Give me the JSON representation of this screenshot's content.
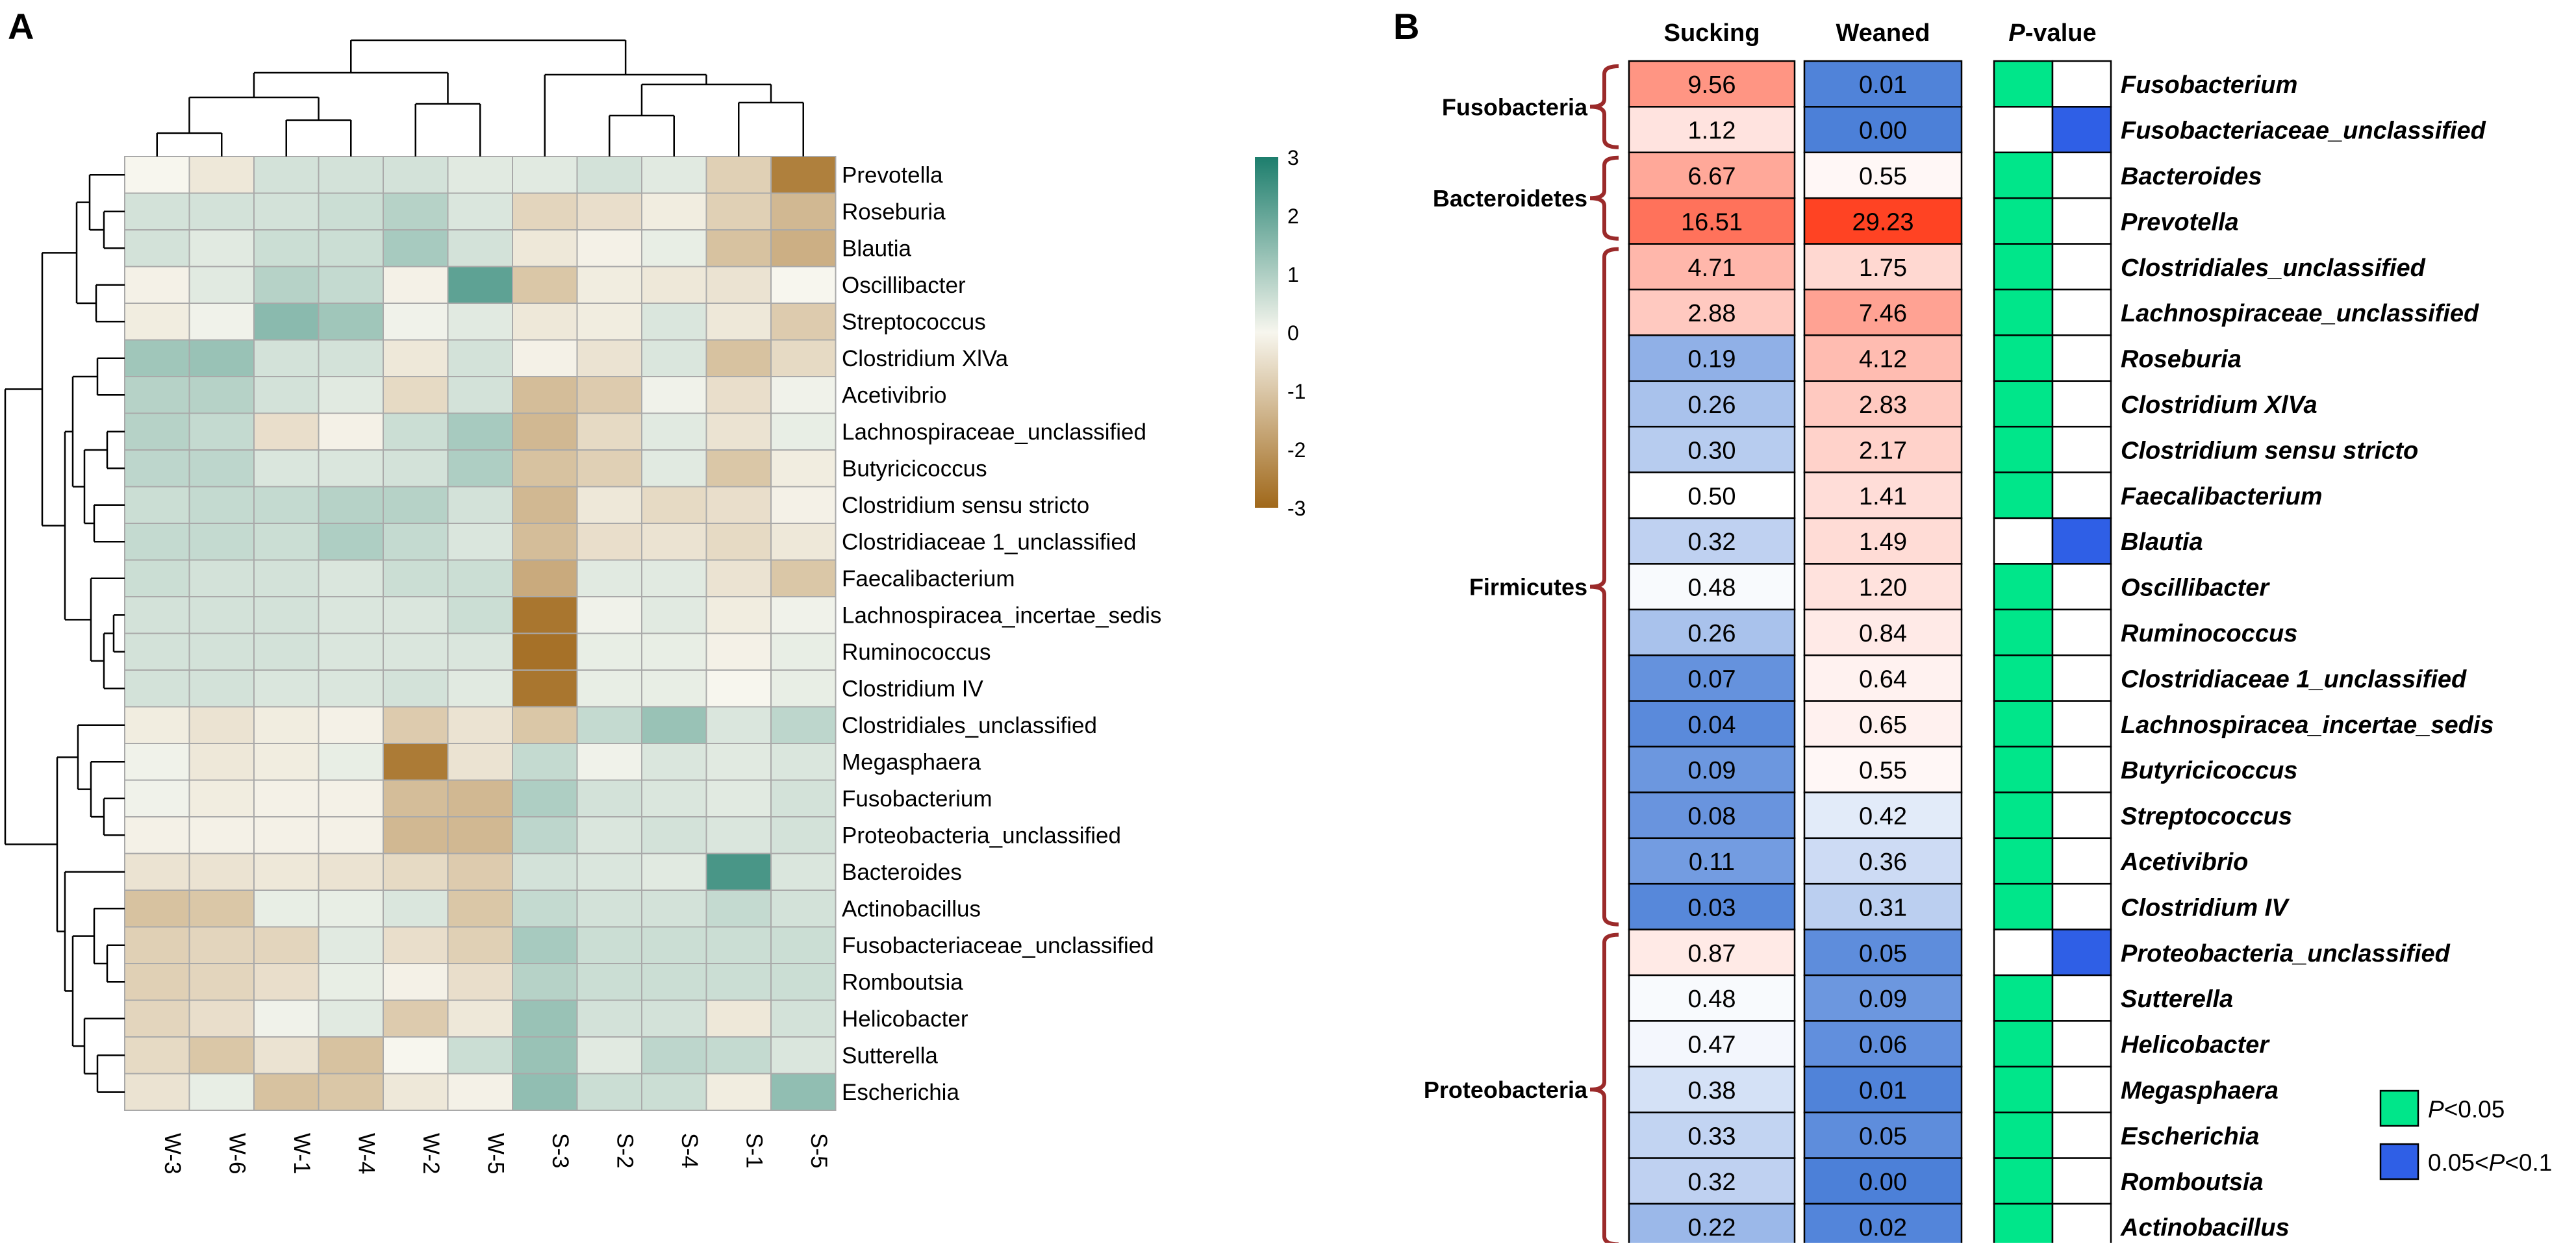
{
  "panel_a_label": "A",
  "panel_b_label": "B",
  "chart_data": [
    {
      "type": "heatmap",
      "title": "",
      "columns": [
        "W-3",
        "W-6",
        "W-1",
        "W-4",
        "W-2",
        "W-5",
        "S-3",
        "S-2",
        "S-4",
        "S-1",
        "S-5"
      ],
      "rows": [
        "Prevotella",
        "Roseburia",
        "Blautia",
        "Oscillibacter",
        "Streptococcus",
        "Clostridium XlVa",
        "Acetivibrio",
        "Lachnospiraceae_unclassified",
        "Butyricicoccus",
        "Clostridium sensu stricto",
        "Clostridiaceae 1_unclassified",
        "Faecalibacterium",
        "Lachnospiracea_incertae_sedis",
        "Ruminococcus",
        "Clostridium IV",
        "Clostridiales_unclassified",
        "Megasphaera",
        "Fusobacterium",
        "Proteobacteria_unclassified",
        "Bacteroides",
        "Actinobacillus",
        "Fusobacteriaceae_unclassified",
        "Romboutsia",
        "Helicobacter",
        "Sutterella",
        "Escherichia"
      ],
      "values": [
        [
          0,
          -0.3,
          0.5,
          0.5,
          0.5,
          0.3,
          0.3,
          0.5,
          0.3,
          -0.8,
          -2.5
        ],
        [
          0.5,
          0.5,
          0.5,
          0.6,
          0.9,
          0.4,
          -0.7,
          -0.5,
          -0.2,
          -0.8,
          -1.3
        ],
        [
          0.5,
          0.3,
          0.6,
          0.6,
          1.1,
          0.5,
          -0.3,
          -0.1,
          0.2,
          -1.1,
          -1.5
        ],
        [
          -0.1,
          0.3,
          0.9,
          0.7,
          -0.1,
          2.1,
          -1.0,
          -0.2,
          -0.3,
          -0.4,
          0
        ],
        [
          -0.2,
          0.1,
          1.5,
          1.2,
          0.1,
          0.3,
          -0.3,
          -0.2,
          0.4,
          -0.3,
          -0.9
        ],
        [
          1.2,
          1.3,
          0.5,
          0.5,
          -0.3,
          0.5,
          -0.1,
          -0.4,
          0.4,
          -1.1,
          -0.6
        ],
        [
          0.9,
          0.9,
          0.5,
          0.3,
          -0.6,
          0.5,
          -1.2,
          -0.9,
          0.1,
          -0.5,
          0.1
        ],
        [
          0.9,
          0.7,
          -0.5,
          -0.1,
          0.6,
          1.1,
          -1.3,
          -0.6,
          0.3,
          -0.4,
          0.2
        ],
        [
          0.8,
          0.8,
          0.4,
          0.4,
          0.5,
          1.0,
          -1.1,
          -0.8,
          0.3,
          -1.0,
          -0.2
        ],
        [
          0.6,
          0.7,
          0.7,
          0.9,
          0.9,
          0.5,
          -1.3,
          -0.3,
          -0.6,
          -0.5,
          -0.1
        ],
        [
          0.7,
          0.7,
          0.6,
          1.0,
          0.7,
          0.4,
          -1.2,
          -0.5,
          -0.4,
          -0.6,
          -0.3
        ],
        [
          0.6,
          0.5,
          0.5,
          0.4,
          0.6,
          0.6,
          -1.6,
          0.3,
          0.3,
          -0.4,
          -1.0
        ],
        [
          0.5,
          0.5,
          0.5,
          0.4,
          0.4,
          0.6,
          -2.7,
          0.1,
          0.3,
          -0.2,
          0.1
        ],
        [
          0.5,
          0.5,
          0.5,
          0.4,
          0.4,
          0.4,
          -2.8,
          0.2,
          0.2,
          -0.1,
          0.2
        ],
        [
          0.5,
          0.5,
          0.4,
          0.4,
          0.5,
          0.3,
          -2.7,
          0.2,
          0.2,
          0,
          0.2
        ],
        [
          -0.2,
          -0.4,
          -0.2,
          -0.1,
          -0.9,
          -0.4,
          -1.0,
          0.7,
          1.3,
          0.4,
          0.8
        ],
        [
          0.1,
          -0.3,
          -0.2,
          0.2,
          -2.6,
          -0.4,
          0.7,
          0.1,
          0.4,
          0.3,
          0.4
        ],
        [
          0.1,
          -0.2,
          -0.1,
          -0.1,
          -1.2,
          -1.3,
          1.0,
          0.5,
          0.4,
          0.3,
          0.5
        ],
        [
          -0.1,
          -0.1,
          -0.1,
          -0.1,
          -1.3,
          -1.3,
          0.8,
          0.4,
          0.5,
          0.4,
          0.5
        ],
        [
          -0.4,
          -0.4,
          -0.3,
          -0.4,
          -0.6,
          -0.9,
          0.5,
          0.4,
          0.3,
          2.4,
          0.4
        ],
        [
          -1.1,
          -1.0,
          0.2,
          0.2,
          0.4,
          -1.0,
          0.7,
          0.5,
          0.5,
          0.7,
          0.5
        ],
        [
          -0.8,
          -0.7,
          -0.7,
          0.3,
          -0.5,
          -0.8,
          1.1,
          0.6,
          0.6,
          0.6,
          0.6
        ],
        [
          -0.8,
          -0.7,
          -0.5,
          0.2,
          -0.1,
          -0.5,
          0.9,
          0.6,
          0.6,
          0.6,
          0.6
        ],
        [
          -0.7,
          -0.5,
          0.1,
          0.3,
          -0.9,
          -0.3,
          1.3,
          0.5,
          0.5,
          -0.3,
          0.5
        ],
        [
          -0.6,
          -1.0,
          -0.4,
          -1.1,
          0,
          0.6,
          1.3,
          0.3,
          0.8,
          0.7,
          0.4
        ],
        [
          -0.4,
          0.2,
          -1.1,
          -1.0,
          -0.3,
          -0.1,
          1.4,
          0.6,
          0.6,
          -0.2,
          1.4
        ]
      ],
      "colorbar": {
        "min": -3,
        "max": 3,
        "ticks": [
          3,
          2,
          1,
          0,
          -1,
          -2,
          -3
        ],
        "colors": [
          "#a0681a",
          "#f7f6ee",
          "#1d7e6d"
        ]
      },
      "row_dendrogram": {
        "main_groups": [
          [
            "Prevotella",
            "Clostridium IV"
          ],
          [
            "Clostridiales_unclassified",
            "Escherichia"
          ]
        ]
      },
      "column_dendrogram": {
        "main_groups": [
          [
            "W-3",
            "W-6",
            "W-1",
            "W-4",
            "W-2",
            "W-5"
          ],
          [
            "S-3",
            "S-2",
            "S-4",
            "S-1",
            "S-5"
          ]
        ]
      }
    },
    {
      "type": "table",
      "columns": [
        "Sucking",
        "Weaned"
      ],
      "pvalue_header": {
        "italic": "P",
        "rest": "-value"
      },
      "rows": [
        {
          "genus": "Fusobacterium",
          "sucking": "9.56",
          "weaned": "0.01",
          "p": "lt005"
        },
        {
          "genus": "Fusobacteriaceae_unclassified",
          "sucking": "1.12",
          "weaned": "0.00",
          "p": "lt01"
        },
        {
          "genus": "Bacteroides",
          "sucking": "6.67",
          "weaned": "0.55",
          "p": "lt005"
        },
        {
          "genus": "Prevotella",
          "sucking": "16.51",
          "weaned": "29.23",
          "p": "lt005"
        },
        {
          "genus": "Clostridiales_unclassified",
          "sucking": "4.71",
          "weaned": "1.75",
          "p": "lt005"
        },
        {
          "genus": "Lachnospiraceae_unclassified",
          "sucking": "2.88",
          "weaned": "7.46",
          "p": "lt005"
        },
        {
          "genus": "Roseburia",
          "sucking": "0.19",
          "weaned": "4.12",
          "p": "lt005"
        },
        {
          "genus": "Clostridium XlVa",
          "sucking": "0.26",
          "weaned": "2.83",
          "p": "lt005"
        },
        {
          "genus": "Clostridium sensu stricto",
          "sucking": "0.30",
          "weaned": "2.17",
          "p": "lt005"
        },
        {
          "genus": "Faecalibacterium",
          "sucking": "0.50",
          "weaned": "1.41",
          "p": "lt005"
        },
        {
          "genus": "Blautia",
          "sucking": "0.32",
          "weaned": "1.49",
          "p": "lt01"
        },
        {
          "genus": "Oscillibacter",
          "sucking": "0.48",
          "weaned": "1.20",
          "p": "lt005"
        },
        {
          "genus": "Ruminococcus",
          "sucking": "0.26",
          "weaned": "0.84",
          "p": "lt005"
        },
        {
          "genus": "Clostridiaceae 1_unclassified",
          "sucking": "0.07",
          "weaned": "0.64",
          "p": "lt005"
        },
        {
          "genus": "Lachnospiracea_incertae_sedis",
          "sucking": "0.04",
          "weaned": "0.65",
          "p": "lt005"
        },
        {
          "genus": "Butyricicoccus",
          "sucking": "0.09",
          "weaned": "0.55",
          "p": "lt005"
        },
        {
          "genus": "Streptococcus",
          "sucking": "0.08",
          "weaned": "0.42",
          "p": "lt005"
        },
        {
          "genus": "Acetivibrio",
          "sucking": "0.11",
          "weaned": "0.36",
          "p": "lt005"
        },
        {
          "genus": "Clostridium IV",
          "sucking": "0.03",
          "weaned": "0.31",
          "p": "lt005"
        },
        {
          "genus": "Proteobacteria_unclassified",
          "sucking": "0.87",
          "weaned": "0.05",
          "p": "lt01"
        },
        {
          "genus": "Sutterella",
          "sucking": "0.48",
          "weaned": "0.09",
          "p": "lt005"
        },
        {
          "genus": "Helicobacter",
          "sucking": "0.47",
          "weaned": "0.06",
          "p": "lt005"
        },
        {
          "genus": "Megasphaera",
          "sucking": "0.38",
          "weaned": "0.01",
          "p": "lt005"
        },
        {
          "genus": "Escherichia",
          "sucking": "0.33",
          "weaned": "0.05",
          "p": "lt005"
        },
        {
          "genus": "Romboutsia",
          "sucking": "0.32",
          "weaned": "0.00",
          "p": "lt005"
        },
        {
          "genus": "Actinobacillus",
          "sucking": "0.22",
          "weaned": "0.02",
          "p": "lt005"
        }
      ],
      "phyla": [
        {
          "name": "Fusobacteria",
          "first_row": 0,
          "last_row": 1
        },
        {
          "name": "Bacteroidetes",
          "first_row": 2,
          "last_row": 3
        },
        {
          "name": "Firmicutes",
          "first_row": 4,
          "last_row": 18
        },
        {
          "name": "Proteobacteria",
          "first_row": 19,
          "last_row": 25
        }
      ],
      "legend": [
        {
          "key": "lt005",
          "color": "#00e68a",
          "parts": [
            {
              "t": "P",
              "i": true
            },
            {
              "t": "<0.05",
              "i": false
            }
          ]
        },
        {
          "key": "lt01",
          "color": "#2f5fe6",
          "parts": [
            {
              "t": "0.05<",
              "i": false
            },
            {
              "t": "P",
              "i": true
            },
            {
              "t": "<0.1",
              "i": false
            }
          ]
        }
      ],
      "shading": {
        "low": "#4c80d8",
        "mid": "#ffffff",
        "high": "#ff4020",
        "mid_value": 0.5,
        "max_value": 30
      }
    }
  ]
}
